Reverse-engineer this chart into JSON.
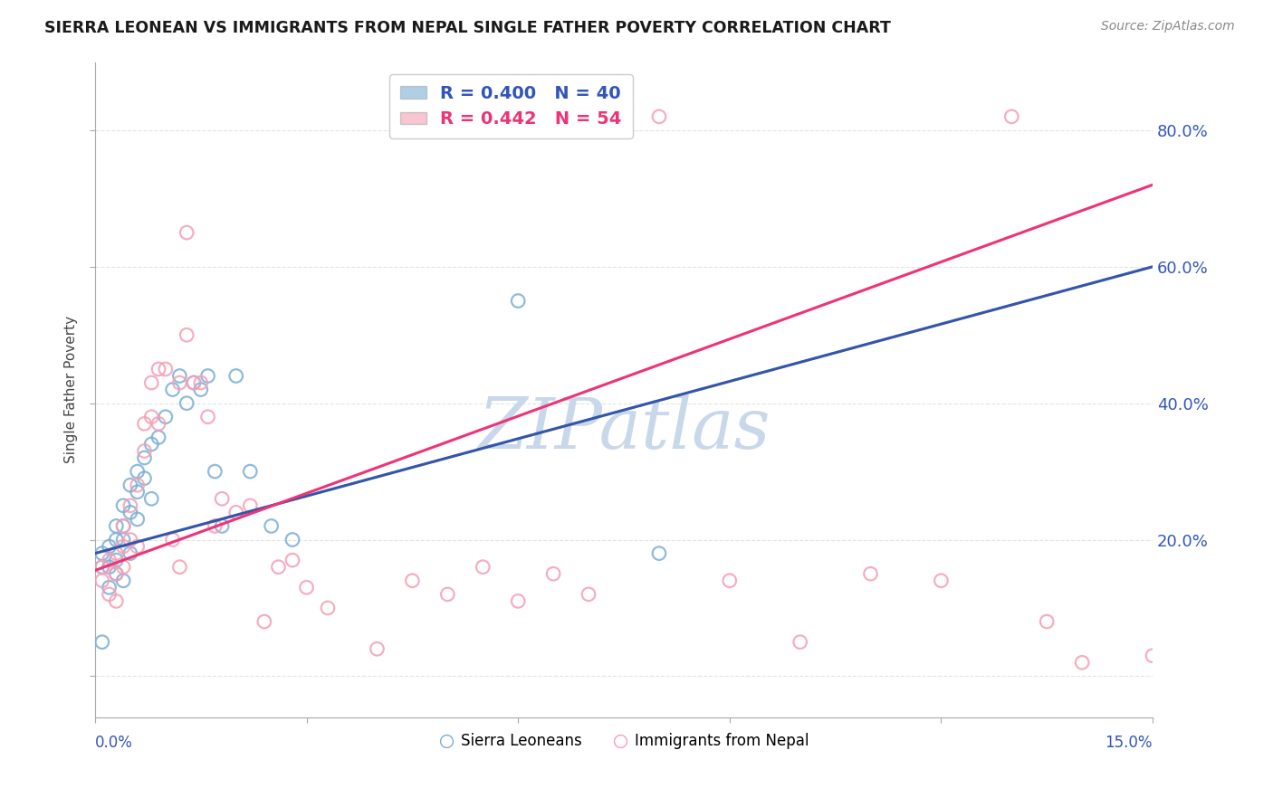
{
  "title": "SIERRA LEONEAN VS IMMIGRANTS FROM NEPAL SINGLE FATHER POVERTY CORRELATION CHART",
  "source": "Source: ZipAtlas.com",
  "ylabel": "Single Father Poverty",
  "y_ticks": [
    0.0,
    0.2,
    0.4,
    0.6,
    0.8
  ],
  "y_tick_labels": [
    "",
    "20.0%",
    "40.0%",
    "60.0%",
    "80.0%"
  ],
  "x_ticks": [
    0.0,
    0.03,
    0.06,
    0.09,
    0.12,
    0.15
  ],
  "xlim": [
    0.0,
    0.15
  ],
  "ylim": [
    -0.06,
    0.9
  ],
  "blue_color": "#7BAFD4",
  "pink_color": "#F4A0B5",
  "line_blue": "#3355AA",
  "line_pink": "#EE3377",
  "dashed_color": "#99AACC",
  "watermark_color": "#C8D8EA",
  "title_color": "#1a1a1a",
  "axis_label_color": "#3355BB",
  "grid_color": "#DDDDDD",
  "sl_x": [
    0.001,
    0.001,
    0.001,
    0.002,
    0.002,
    0.002,
    0.003,
    0.003,
    0.003,
    0.003,
    0.004,
    0.004,
    0.004,
    0.004,
    0.005,
    0.005,
    0.005,
    0.006,
    0.006,
    0.006,
    0.007,
    0.007,
    0.008,
    0.008,
    0.009,
    0.01,
    0.011,
    0.012,
    0.013,
    0.014,
    0.015,
    0.016,
    0.017,
    0.018,
    0.02,
    0.022,
    0.025,
    0.028,
    0.06,
    0.08
  ],
  "sl_y": [
    0.16,
    0.18,
    0.05,
    0.19,
    0.16,
    0.13,
    0.17,
    0.2,
    0.22,
    0.15,
    0.25,
    0.22,
    0.2,
    0.14,
    0.28,
    0.24,
    0.18,
    0.3,
    0.27,
    0.23,
    0.32,
    0.29,
    0.34,
    0.26,
    0.35,
    0.38,
    0.42,
    0.44,
    0.4,
    0.43,
    0.42,
    0.44,
    0.3,
    0.22,
    0.44,
    0.3,
    0.22,
    0.2,
    0.55,
    0.18
  ],
  "np_x": [
    0.001,
    0.001,
    0.002,
    0.002,
    0.003,
    0.003,
    0.003,
    0.004,
    0.004,
    0.004,
    0.005,
    0.005,
    0.006,
    0.006,
    0.007,
    0.007,
    0.008,
    0.008,
    0.009,
    0.009,
    0.01,
    0.011,
    0.012,
    0.012,
    0.013,
    0.013,
    0.014,
    0.015,
    0.016,
    0.017,
    0.018,
    0.02,
    0.022,
    0.024,
    0.026,
    0.028,
    0.03,
    0.033,
    0.04,
    0.045,
    0.05,
    0.055,
    0.06,
    0.065,
    0.07,
    0.08,
    0.09,
    0.1,
    0.11,
    0.12,
    0.13,
    0.135,
    0.14,
    0.15
  ],
  "np_y": [
    0.14,
    0.16,
    0.12,
    0.17,
    0.11,
    0.15,
    0.18,
    0.16,
    0.19,
    0.22,
    0.2,
    0.25,
    0.19,
    0.28,
    0.37,
    0.33,
    0.43,
    0.38,
    0.45,
    0.37,
    0.45,
    0.2,
    0.16,
    0.43,
    0.5,
    0.65,
    0.43,
    0.43,
    0.38,
    0.22,
    0.26,
    0.24,
    0.25,
    0.08,
    0.16,
    0.17,
    0.13,
    0.1,
    0.04,
    0.14,
    0.12,
    0.16,
    0.11,
    0.15,
    0.12,
    0.82,
    0.14,
    0.05,
    0.15,
    0.14,
    0.82,
    0.08,
    0.02,
    0.03
  ],
  "sl_line_x0": 0.0,
  "sl_line_y0": 0.18,
  "sl_line_x1": 0.15,
  "sl_line_y1": 0.6,
  "np_line_x0": 0.0,
  "np_line_y0": 0.155,
  "np_line_x1": 0.15,
  "np_line_y1": 0.72
}
